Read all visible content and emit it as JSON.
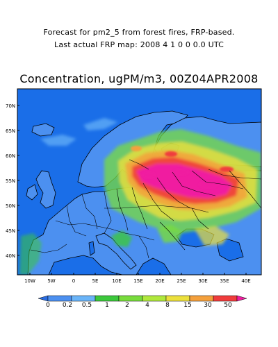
{
  "header": {
    "line1": "Forecast for pm2_5 from forest fires, FRP-based.",
    "line2": "Last actual FRP map: 2008  4  1  0  0  0.0 UTC",
    "title": "Concentration, ugPM/m3, 00Z04APR2008"
  },
  "map": {
    "lat_labels": [
      "70N",
      "65N",
      "60N",
      "55N",
      "50N",
      "45N",
      "40N"
    ],
    "lon_labels": [
      "10W",
      "5W",
      "0",
      "5E",
      "10E",
      "15E",
      "20E",
      "25E",
      "30E",
      "35E",
      "40E"
    ],
    "ocean_color": "#1a6ee8",
    "land_low_color": "#5aa0f0"
  },
  "colorbar": {
    "labels": [
      "0",
      "0.2",
      "0.5",
      "1",
      "2",
      "4",
      "8",
      "15",
      "30",
      "50"
    ],
    "colors": [
      "#2a6ce0",
      "#4c90f0",
      "#6ab4f8",
      "#3cc83c",
      "#78dc3c",
      "#b0e83c",
      "#ece03c",
      "#f4a03c",
      "#f03c3c",
      "#f01ea0"
    ]
  }
}
